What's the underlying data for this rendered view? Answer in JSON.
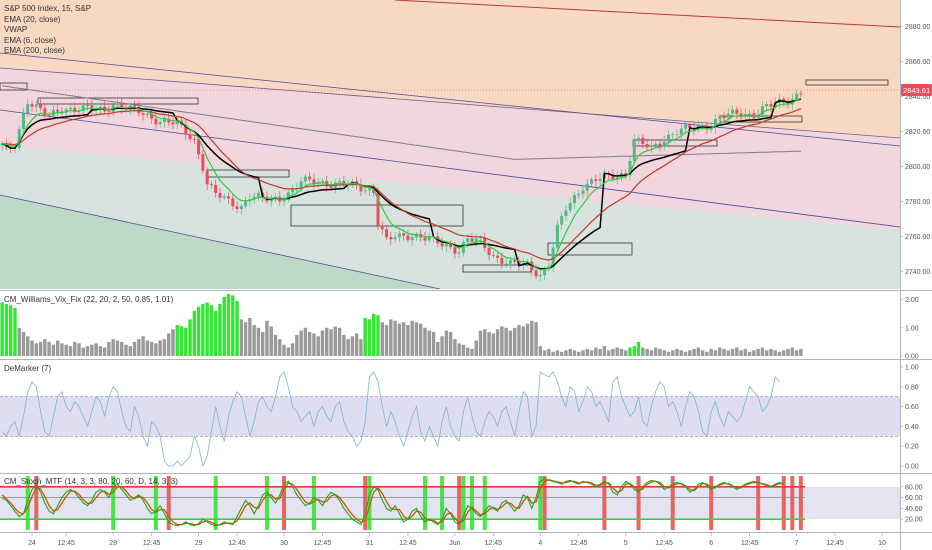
{
  "chart_data": [
    {
      "type": "candlestick",
      "legend": [
        "S&P 500 Index, 15, S&P",
        "EMA (20, close)",
        "VWAP",
        "EMA (6, close)",
        "EMA (200, close)"
      ],
      "last_price": 2843.61,
      "y_ticks": [
        2740,
        2760,
        2780,
        2800,
        2820,
        2840,
        2860,
        2880
      ],
      "y_tick_labels": [
        "2740.00",
        "2760.00",
        "2780.00",
        "2800.00",
        "2820.00",
        "2840.00",
        "2860.00",
        "2880.00"
      ],
      "ylim": [
        2730,
        2895
      ],
      "close_path": [
        [
          0,
          2812
        ],
        [
          1,
          2808
        ],
        [
          3,
          2812
        ],
        [
          5,
          2830
        ],
        [
          6,
          2838
        ],
        [
          8,
          2834
        ],
        [
          11,
          2828
        ],
        [
          14,
          2833
        ],
        [
          19,
          2833
        ],
        [
          24,
          2832
        ],
        [
          26,
          2836
        ],
        [
          28,
          2834
        ],
        [
          32,
          2831
        ],
        [
          37,
          2826
        ],
        [
          41,
          2824
        ],
        [
          45,
          2815
        ],
        [
          47,
          2800
        ],
        [
          48,
          2790
        ],
        [
          50,
          2784
        ],
        [
          53,
          2780
        ],
        [
          56,
          2777
        ],
        [
          58,
          2783
        ],
        [
          62,
          2781
        ],
        [
          65,
          2782
        ],
        [
          68,
          2786
        ],
        [
          70,
          2791
        ],
        [
          73,
          2792
        ],
        [
          77,
          2790
        ],
        [
          83,
          2789
        ],
        [
          87,
          2786
        ],
        [
          88,
          2768
        ],
        [
          90,
          2757
        ],
        [
          92,
          2760
        ],
        [
          96,
          2761
        ],
        [
          100,
          2758
        ],
        [
          104,
          2755
        ],
        [
          107,
          2752
        ],
        [
          109,
          2758
        ],
        [
          112,
          2757
        ],
        [
          115,
          2749
        ],
        [
          119,
          2744
        ],
        [
          123,
          2744
        ],
        [
          126,
          2738
        ],
        [
          128,
          2744
        ],
        [
          130,
          2764
        ],
        [
          132,
          2776
        ],
        [
          136,
          2789
        ],
        [
          140,
          2793
        ],
        [
          146,
          2796
        ],
        [
          148,
          2815
        ],
        [
          152,
          2810
        ],
        [
          155,
          2816
        ],
        [
          158,
          2820
        ],
        [
          162,
          2822
        ],
        [
          166,
          2824
        ],
        [
          168,
          2828
        ],
        [
          172,
          2830
        ],
        [
          176,
          2830
        ],
        [
          179,
          2834
        ],
        [
          183,
          2837
        ],
        [
          185,
          2839
        ],
        [
          187,
          2843
        ]
      ],
      "day_labels": [
        {
          "i": 7,
          "label": "24"
        },
        {
          "i": 15,
          "label": "12:45"
        },
        {
          "i": 26,
          "label": "28"
        },
        {
          "i": 35,
          "label": "12:45"
        },
        {
          "i": 46,
          "label": "29"
        },
        {
          "i": 55,
          "label": "12:45"
        },
        {
          "i": 66,
          "label": "30"
        },
        {
          "i": 75,
          "label": "12:45"
        },
        {
          "i": 86,
          "label": "31"
        },
        {
          "i": 95,
          "label": "12:45"
        },
        {
          "i": 106,
          "label": "Jun"
        },
        {
          "i": 115,
          "label": "12:45"
        },
        {
          "i": 126,
          "label": "4"
        },
        {
          "i": 135,
          "label": "12:45"
        },
        {
          "i": 146,
          "label": "5"
        },
        {
          "i": 155,
          "label": "12:45"
        },
        {
          "i": 166,
          "label": "6"
        },
        {
          "i": 175,
          "label": "12:45"
        },
        {
          "i": 186,
          "label": "7"
        },
        {
          "i": 195,
          "label": "12:45"
        },
        {
          "i": 206,
          "label": "10"
        }
      ]
    },
    {
      "type": "bar",
      "title": "CM_Williams_Vix_Fix (22, 20, 2, 50, 0.85, 1.01)",
      "y_ticks": [
        0,
        1,
        2
      ],
      "y_tick_labels": [
        "0.00",
        "1.00",
        "2.00"
      ],
      "ylim": [
        0,
        2.2
      ],
      "values": [
        1.9,
        1.85,
        1.8,
        1.7,
        1.0,
        0.85,
        0.7,
        0.55,
        0.45,
        0.5,
        0.6,
        0.5,
        0.4,
        0.55,
        0.45,
        0.4,
        0.35,
        0.5,
        0.45,
        0.3,
        0.35,
        0.4,
        0.45,
        0.35,
        0.3,
        0.5,
        0.6,
        0.55,
        0.5,
        0.4,
        0.35,
        0.5,
        0.6,
        0.7,
        0.55,
        0.5,
        0.45,
        0.55,
        0.6,
        0.8,
        0.95,
        1.1,
        1.05,
        1.0,
        1.3,
        1.6,
        1.75,
        1.85,
        1.9,
        1.8,
        1.6,
        1.85,
        2.1,
        2.2,
        2.15,
        1.95,
        1.3,
        1.2,
        1.35,
        1.1,
        1.0,
        0.85,
        1.25,
        1.05,
        0.75,
        0.6,
        0.4,
        0.3,
        0.45,
        0.75,
        0.9,
        1.0,
        0.85,
        0.8,
        0.7,
        0.9,
        1.0,
        0.95,
        1.05,
        1.0,
        0.75,
        0.6,
        0.7,
        0.8,
        0.6,
        1.35,
        1.3,
        1.5,
        1.45,
        1.2,
        1.1,
        1.3,
        1.25,
        1.15,
        1.2,
        1.1,
        1.25,
        1.2,
        1.15,
        1.0,
        0.9,
        0.85,
        0.5,
        0.7,
        0.9,
        0.85,
        0.6,
        0.45,
        0.4,
        0.3,
        0.25,
        0.55,
        0.9,
        0.95,
        0.85,
        0.8,
        0.95,
        1.05,
        1.0,
        0.9,
        1.0,
        1.1,
        1.05,
        1.15,
        1.25,
        1.2,
        0.35,
        0.2,
        0.25,
        0.15,
        0.2,
        0.15,
        0.2,
        0.25,
        0.2,
        0.15,
        0.2,
        0.25,
        0.2,
        0.3,
        0.25,
        0.35,
        0.2,
        0.25,
        0.3,
        0.25,
        0.2,
        0.3,
        0.35,
        0.5,
        0.3,
        0.25,
        0.2,
        0.3,
        0.25,
        0.2,
        0.15,
        0.2,
        0.25,
        0.2,
        0.15,
        0.2,
        0.25,
        0.3,
        0.2,
        0.15,
        0.25,
        0.2,
        0.3,
        0.25,
        0.2,
        0.25,
        0.3,
        0.2,
        0.25,
        0.15,
        0.2,
        0.25,
        0.3,
        0.2,
        0.25,
        0.2,
        0.15,
        0.2,
        0.25,
        0.3,
        0.2,
        0.25
      ],
      "green_ranges": [
        [
          0,
          3
        ],
        [
          41,
          55
        ],
        [
          85,
          88
        ],
        [
          147,
          149
        ]
      ]
    },
    {
      "type": "line",
      "title": "DeMarker (7)",
      "y_ticks": [
        0,
        0.2,
        0.4,
        0.6,
        0.8,
        1.0
      ],
      "y_tick_labels": [
        "0.00",
        "0.20",
        "0.40",
        "0.60",
        "0.80",
        "1.00"
      ],
      "ylim": [
        -0.05,
        1.05
      ],
      "band": [
        0.3,
        0.7
      ],
      "values": [
        0.35,
        0.3,
        0.4,
        0.45,
        0.3,
        0.5,
        0.75,
        0.85,
        0.8,
        0.55,
        0.35,
        0.3,
        0.5,
        0.7,
        0.75,
        0.6,
        0.55,
        0.65,
        0.6,
        0.5,
        0.4,
        0.55,
        0.7,
        0.65,
        0.5,
        0.7,
        0.8,
        0.75,
        0.55,
        0.4,
        0.35,
        0.6,
        0.5,
        0.3,
        0.2,
        0.45,
        0.4,
        0.3,
        0.05,
        0.0,
        0.0,
        0.05,
        0.0,
        0.05,
        0.1,
        0.3,
        0.2,
        0.0,
        0.1,
        0.35,
        0.6,
        0.4,
        0.25,
        0.5,
        0.65,
        0.75,
        0.7,
        0.5,
        0.3,
        0.45,
        0.65,
        0.7,
        0.6,
        0.55,
        0.7,
        0.9,
        0.95,
        0.8,
        0.6,
        0.55,
        0.45,
        0.5,
        0.55,
        0.4,
        0.55,
        0.6,
        0.5,
        0.45,
        0.6,
        0.65,
        0.45,
        0.35,
        0.3,
        0.2,
        0.25,
        0.45,
        0.9,
        0.95,
        0.85,
        0.6,
        0.4,
        0.55,
        0.45,
        0.3,
        0.2,
        0.35,
        0.5,
        0.6,
        0.35,
        0.25,
        0.4,
        0.3,
        0.2,
        0.45,
        0.6,
        0.4,
        0.3,
        0.25,
        0.55,
        0.7,
        0.5,
        0.35,
        0.3,
        0.45,
        0.55,
        0.5,
        0.4,
        0.55,
        0.6,
        0.45,
        0.3,
        0.55,
        0.75,
        0.7,
        0.3,
        0.4,
        0.95,
        0.92,
        0.9,
        0.95,
        0.85,
        0.7,
        0.6,
        0.8,
        0.75,
        0.55,
        0.65,
        0.8,
        0.75,
        0.6,
        0.65,
        0.55,
        0.45,
        0.85,
        0.9,
        0.7,
        0.6,
        0.5,
        0.55,
        0.7,
        0.45,
        0.4,
        0.6,
        0.75,
        0.85,
        0.8,
        0.6,
        0.65,
        0.55,
        0.4,
        0.6,
        0.75,
        0.7,
        0.55,
        0.35,
        0.3,
        0.55,
        0.65,
        0.5,
        0.4,
        0.55,
        0.5,
        0.45,
        0.5,
        0.65,
        0.8,
        0.75,
        0.7,
        0.55,
        0.6,
        0.7,
        0.9,
        0.85
      ]
    },
    {
      "type": "line",
      "title": "CM_Stoch_MTF (14, 3, 3, 80, 20, 60, D, 14, 3, 3)",
      "y_ticks": [
        20,
        40,
        60,
        80
      ],
      "y_tick_labels": [
        "20.00",
        "40.00",
        "60.00",
        "80.00"
      ],
      "ylim": [
        0,
        100
      ],
      "levels": [
        20,
        60,
        80
      ],
      "k_values": [
        60,
        55,
        45,
        35,
        25,
        30,
        55,
        75,
        85,
        70,
        50,
        35,
        30,
        45,
        60,
        70,
        75,
        70,
        60,
        50,
        45,
        55,
        70,
        75,
        70,
        60,
        80,
        85,
        75,
        65,
        55,
        60,
        65,
        55,
        40,
        30,
        35,
        45,
        30,
        15,
        10,
        8,
        10,
        15,
        10,
        8,
        12,
        20,
        15,
        10,
        8,
        10,
        15,
        12,
        10,
        25,
        40,
        55,
        45,
        30,
        45,
        65,
        70,
        60,
        50,
        65,
        85,
        90,
        80,
        65,
        55,
        45,
        50,
        60,
        55,
        45,
        60,
        70,
        65,
        55,
        40,
        30,
        20,
        15,
        10,
        30,
        65,
        80,
        75,
        55,
        40,
        35,
        45,
        30,
        15,
        20,
        35,
        40,
        25,
        15,
        20,
        15,
        10,
        20,
        40,
        30,
        15,
        10,
        25,
        45,
        40,
        30,
        25,
        35,
        45,
        40,
        35,
        50,
        55,
        45,
        35,
        45,
        65,
        60,
        40,
        60,
        90,
        95,
        92,
        90,
        88,
        85,
        90,
        92,
        88,
        85,
        90,
        88,
        85,
        80,
        85,
        90,
        85,
        70,
        65,
        80,
        90,
        85,
        75,
        70,
        80,
        88,
        92,
        90,
        85,
        75,
        80,
        85,
        88,
        85,
        80,
        70,
        75,
        85,
        88,
        82,
        75,
        80,
        85,
        88,
        85,
        80,
        75,
        80,
        85,
        88,
        90,
        88,
        85,
        82,
        80,
        85,
        88,
        85
      ],
      "d_values": [
        65,
        58,
        50,
        40,
        32,
        30,
        42,
        62,
        78,
        76,
        62,
        45,
        35,
        38,
        50,
        62,
        72,
        72,
        66,
        56,
        49,
        50,
        60,
        70,
        72,
        66,
        70,
        80,
        80,
        72,
        62,
        58,
        62,
        60,
        50,
        38,
        33,
        38,
        37,
        25,
        15,
        10,
        10,
        12,
        12,
        10,
        10,
        15,
        17,
        14,
        10,
        9,
        12,
        13,
        12,
        17,
        30,
        45,
        50,
        42,
        40,
        55,
        65,
        65,
        57,
        58,
        75,
        87,
        85,
        75,
        63,
        52,
        48,
        53,
        57,
        52,
        53,
        63,
        66,
        60,
        50,
        38,
        28,
        20,
        14,
        18,
        45,
        70,
        78,
        68,
        52,
        40,
        38,
        38,
        26,
        20,
        26,
        35,
        33,
        22,
        18,
        18,
        13,
        15,
        28,
        32,
        22,
        13,
        17,
        33,
        42,
        35,
        28,
        30,
        38,
        42,
        38,
        43,
        50,
        50,
        42,
        40,
        53,
        62,
        50,
        52,
        77,
        90,
        93,
        91,
        89,
        87,
        88,
        90,
        90,
        87,
        88,
        89,
        87,
        83,
        83,
        87,
        87,
        78,
        70,
        73,
        85,
        86,
        80,
        73,
        76,
        84,
        89,
        90,
        88,
        81,
        78,
        82,
        86,
        86,
        82,
        75,
        73,
        80,
        86,
        85,
        78,
        78,
        83,
        86,
        86,
        82,
        78,
        78,
        83,
        86,
        88,
        88,
        86,
        84,
        81,
        83,
        86,
        86
      ],
      "green_bars": [
        6,
        26,
        36,
        50,
        62,
        73,
        86,
        99,
        103,
        108,
        110,
        113,
        126
      ],
      "red_bars": [
        8,
        39,
        66,
        85,
        107,
        127,
        141,
        149,
        157,
        166,
        177,
        183,
        185,
        187
      ]
    }
  ],
  "x_labels": [
    "24",
    "12:45",
    "28",
    "12:45",
    "29",
    "12:45",
    "30",
    "12:45",
    "31",
    "12:45",
    "Jun",
    "12:45",
    "4",
    "12:45",
    "5",
    "12:45",
    "6",
    "12:45",
    "7",
    "12:45",
    "10"
  ],
  "colors": {
    "up": "#53b987",
    "down": "#eb4d5c",
    "ema20": "#c0392b",
    "ema6": "#2ecc40",
    "vwap": "#000000",
    "ema200": "#7a7a9a",
    "price_badge_bg": "#eb4d5c",
    "price_badge_text": "#ffffff",
    "vix_gray": "#9a9a9a",
    "vix_green": "#33e633",
    "demarker": "#7fb3d5",
    "stoch_k": "#1fa81f",
    "stoch_d": "#d35400",
    "stoch_green": "#33e633",
    "stoch_red": "#e8574f"
  }
}
